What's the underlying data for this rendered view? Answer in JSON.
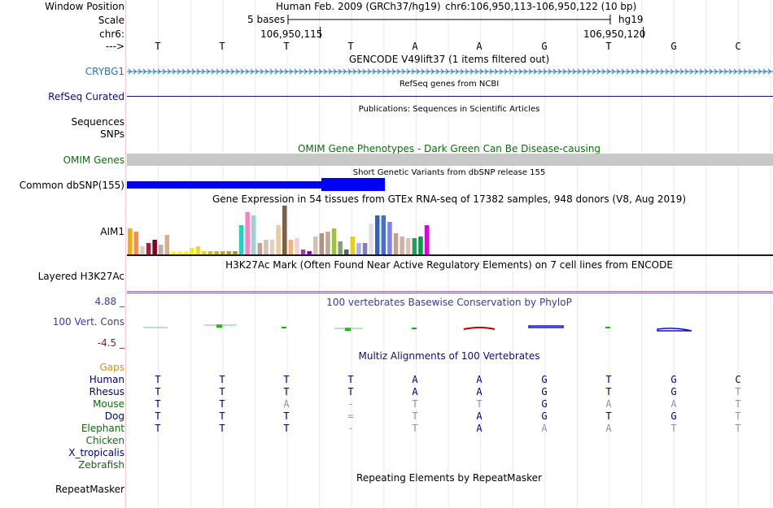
{
  "header": {
    "window_position_label": "Window Position",
    "scale_label": "Scale",
    "chrom_label": "chr6:",
    "strand_label": "--->",
    "assembly_text": "Human Feb. 2009 (GRCh37/hg19)",
    "position_text": "chr6:106,950,113-106,950,122 (10 bp)",
    "scale_text": "5 bases",
    "scale_db": "hg19",
    "coord_left": "106,950,115",
    "coord_right": "106,950,120",
    "bases": [
      "T",
      "T",
      "T",
      "T",
      "A",
      "A",
      "G",
      "T",
      "G",
      "C"
    ]
  },
  "tracks": {
    "gencode": {
      "title": "GENCODE V49lift37 (1 items filtered out)",
      "item_label": "CRYBG1",
      "color": "#1f77b4"
    },
    "refseq": {
      "label": "RefSeq Curated",
      "title": "RefSeq genes from NCBI",
      "color": "#0c0c78"
    },
    "publications": {
      "title": "Publications: Sequences in Scientific Articles",
      "label_line1": "Sequences",
      "label_line2": "SNPs"
    },
    "omim": {
      "title": "OMIM Gene Phenotypes - Dark Green Can Be Disease-causing",
      "label": "OMIM Genes",
      "color": "#0b6b0b"
    },
    "dbsnp": {
      "title": "Short Genetic Variants from dbSNP release 155",
      "label": "Common dbSNP(155)",
      "color": "#0000ff"
    },
    "gtex": {
      "title": "Gene Expression in 54 tissues from GTEx RNA-seq of 17382 samples, 948 donors (V8, Aug 2019)",
      "label": "AIM1"
    },
    "h3k27ac": {
      "title": "H3K27Ac Mark (Often Found Near Active Regulatory Elements) on 7 cell lines from ENCODE",
      "label": "Layered H3K27Ac"
    },
    "conservation": {
      "title": "100 vertebrates Basewise Conservation by PhyloP",
      "label": "100 Vert. Cons",
      "max": "4.88 _",
      "min": "-4.5 _",
      "color": "#3a3aa0"
    },
    "multiz": {
      "title": "Multiz Alignments of 100 Vertebrates",
      "gaps_label": "Gaps"
    },
    "repeatmasker": {
      "title": "Repeating Elements by RepeatMasker",
      "label": "RepeatMasker"
    }
  },
  "species": [
    {
      "name": "Human",
      "bases": [
        "T",
        "T",
        "T",
        "T",
        "A",
        "A",
        "G",
        "T",
        "G",
        "C"
      ],
      "color": "#000080"
    },
    {
      "name": "Rhesus",
      "bases": [
        "T",
        "T",
        "T",
        "T",
        "A",
        "A",
        "G",
        "T",
        "G",
        "T"
      ],
      "color": "#000080"
    },
    {
      "name": "Mouse",
      "bases": [
        "T",
        "T",
        "A",
        "-",
        "T",
        "T",
        "G",
        "A",
        "A",
        "T"
      ],
      "color": "#0b6b0b"
    },
    {
      "name": "Dog",
      "bases": [
        "T",
        "T",
        "T",
        "=",
        "T",
        "A",
        "G",
        "T",
        "G",
        "T"
      ],
      "color": "#000080"
    },
    {
      "name": "Elephant",
      "bases": [
        "T",
        "T",
        "T",
        "-",
        "T",
        "A",
        "A",
        "A",
        "T",
        "T"
      ],
      "color": "#0b6b0b"
    },
    {
      "name": "Chicken",
      "bases": [],
      "color": "#0b6b0b"
    },
    {
      "name": "X_tropicalis",
      "bases": [],
      "color": "#000080"
    },
    {
      "name": "Zebrafish",
      "bases": [],
      "color": "#0b6b0b"
    }
  ]
}
